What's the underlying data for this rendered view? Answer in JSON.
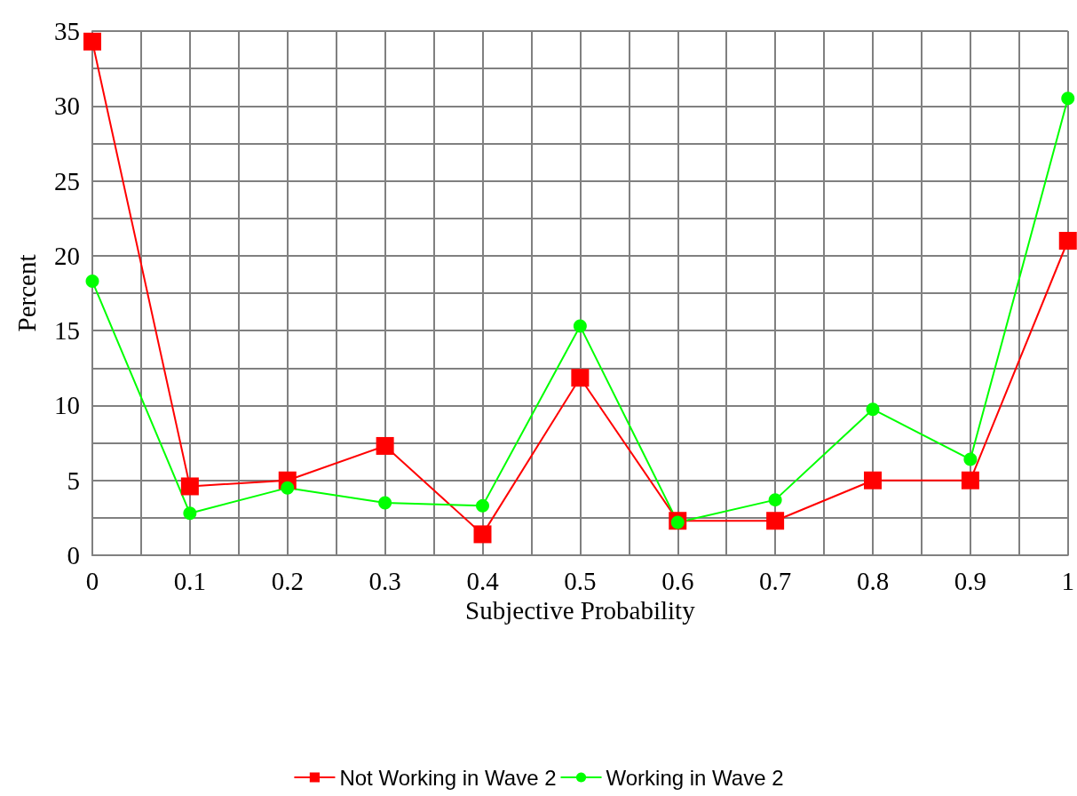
{
  "chart_data": {
    "type": "line",
    "xlabel": "Subjective Probability",
    "ylabel": "Percent",
    "x": [
      0,
      0.1,
      0.2,
      0.3,
      0.4,
      0.5,
      0.6,
      0.7,
      0.8,
      0.9,
      1
    ],
    "series": [
      {
        "name": "Not Working in Wave 2",
        "color": "#ff0000",
        "marker": "square",
        "values": [
          34.3,
          4.6,
          5.0,
          7.3,
          1.4,
          11.85,
          2.3,
          2.3,
          5.0,
          5.0,
          21.0
        ]
      },
      {
        "name": "Working in Wave 2",
        "color": "#00ff00",
        "marker": "circle",
        "values": [
          18.3,
          2.8,
          4.5,
          3.5,
          3.3,
          15.3,
          2.2,
          3.7,
          9.75,
          6.4,
          30.5
        ]
      }
    ],
    "xlim": [
      0,
      1
    ],
    "xticks": [
      0,
      {
        "value": 0.05,
        "label": null
      },
      0.1,
      {
        "value": 0.15,
        "label": null
      },
      0.2,
      {
        "value": 0.25,
        "label": null
      },
      0.3,
      {
        "value": 0.35,
        "label": null
      },
      0.4,
      {
        "value": 0.45,
        "label": null
      },
      0.5,
      {
        "value": 0.55,
        "label": null
      },
      0.6,
      {
        "value": 0.65,
        "label": null
      },
      0.7,
      {
        "value": 0.75,
        "label": null
      },
      0.8,
      {
        "value": 0.85,
        "label": null
      },
      0.9,
      {
        "value": 0.95,
        "label": null
      },
      1
    ],
    "ylim": [
      0,
      35
    ],
    "yticks": [
      0,
      {
        "value": 2.5,
        "label": null
      },
      5,
      {
        "value": 7.5,
        "label": null
      },
      10,
      {
        "value": 12.5,
        "label": null
      },
      15,
      {
        "value": 17.5,
        "label": null
      },
      20,
      {
        "value": 22.5,
        "label": null
      },
      25,
      {
        "value": 27.5,
        "label": null
      },
      30,
      {
        "value": 32.5,
        "label": null
      },
      35
    ],
    "grid": true,
    "legend": "bottom",
    "line_style": "solid"
  }
}
